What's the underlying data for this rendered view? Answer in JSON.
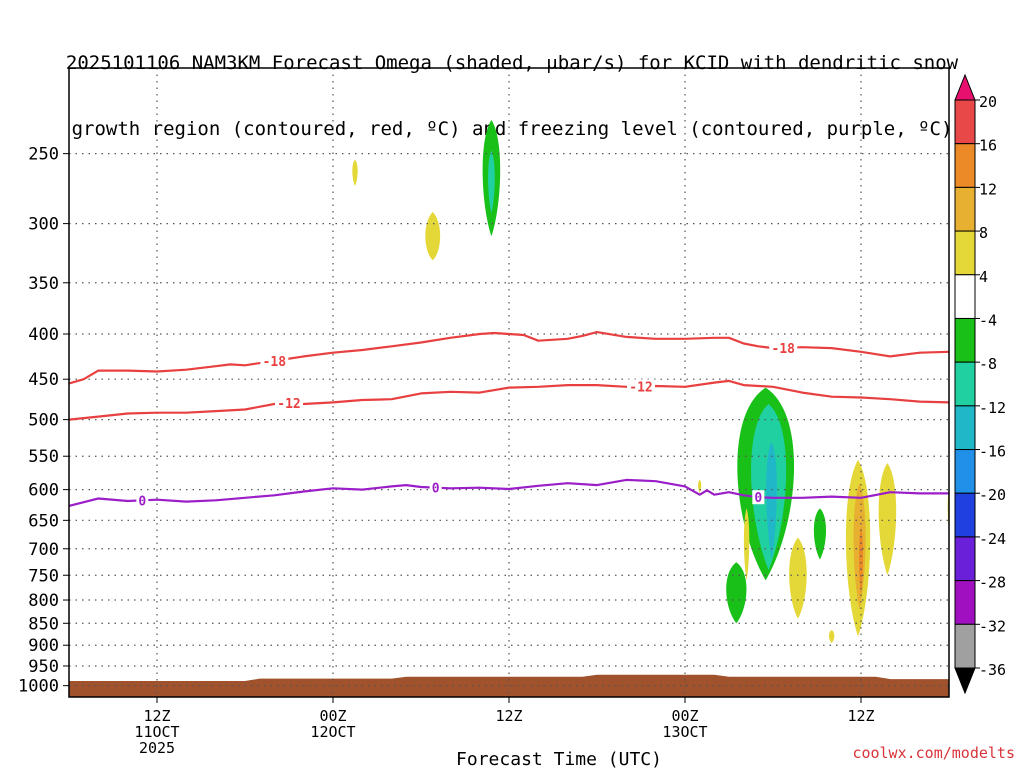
{
  "header": {
    "title_line1": "2025101106 NAM3KM Forecast Omega (shaded, μbar/s) for KCID with dendritic snow",
    "title_line2": "growth region (contoured, red, ºC) and freezing level (contoured, purple, ºC)"
  },
  "footer": {
    "credit": "coolwx.com/modelts"
  },
  "chart_data": {
    "type": "heatmap",
    "title": "2025101106 NAM3KM Forecast Omega (shaded, μbar/s) for KCID with dendritic snow growth region (contoured, red, ºC) and freezing level (contoured, purple, ºC)",
    "xlabel": "Forecast Time (UTC)",
    "ylabel": "",
    "x_unit": "hours since 2025-10-11 06Z",
    "xlim": [
      0,
      60
    ],
    "ylim": [
      1030,
      200
    ],
    "y_scale": "log-pressure",
    "grid": true,
    "y_ticks": [
      250,
      300,
      350,
      400,
      450,
      500,
      550,
      600,
      650,
      700,
      750,
      800,
      850,
      900,
      950,
      1000
    ],
    "x_ticks": [
      {
        "x": 6,
        "label": [
          "12Z",
          "11OCT",
          "2025"
        ]
      },
      {
        "x": 18,
        "label": [
          "00Z",
          "12OCT"
        ]
      },
      {
        "x": 30,
        "label": [
          "12Z"
        ]
      },
      {
        "x": 42,
        "label": [
          "00Z",
          "13OCT"
        ]
      },
      {
        "x": 54,
        "label": [
          "12Z"
        ]
      }
    ],
    "colorbar": {
      "labels": [
        "20",
        "16",
        "12",
        "8",
        "4",
        "-4",
        "-8",
        "-12",
        "-16",
        "-20",
        "-24",
        "-28",
        "-32",
        "-36"
      ],
      "colors": [
        "#e8106e",
        "#e84848",
        "#ec8a28",
        "#e8b030",
        "#e4d838",
        "#ffffff",
        "#18c018",
        "#20d0a0",
        "#20b8c8",
        "#2090e8",
        "#2040e0",
        "#6a20d8",
        "#a010c0",
        "#a0a0a0",
        "#000000"
      ]
    },
    "contours": [
      {
        "name": "-18",
        "color": "#e84040",
        "x": [
          0,
          1,
          2,
          4,
          6,
          8,
          10,
          11,
          12,
          14,
          16,
          18,
          20,
          22,
          24,
          26,
          28,
          29,
          30,
          31,
          32,
          34,
          35,
          36,
          38,
          40,
          42,
          44,
          45,
          46,
          47,
          48,
          50,
          52,
          54,
          56,
          58,
          60
        ],
        "y": [
          455,
          450,
          440,
          440,
          441,
          439,
          435,
          433,
          434,
          429,
          424,
          420,
          417,
          413,
          409,
          404,
          400,
          399,
          400,
          401,
          407,
          405,
          402,
          398,
          403,
          405,
          405,
          404,
          404,
          410,
          413,
          415,
          414,
          415,
          419,
          424,
          420,
          419
        ],
        "labels": [
          {
            "x": 14,
            "text": "-18"
          },
          {
            "x": 48.7,
            "text": "-18"
          }
        ]
      },
      {
        "name": "-12",
        "color": "#e84040",
        "x": [
          0,
          2,
          4,
          6,
          8,
          10,
          12,
          14,
          15,
          16,
          18,
          20,
          22,
          24,
          26,
          28,
          30,
          32,
          34,
          36,
          38,
          40,
          42,
          44,
          45,
          46,
          48,
          50,
          52,
          54,
          56,
          58,
          60
        ],
        "y": [
          500,
          496,
          492,
          491,
          491,
          489,
          487,
          480,
          479,
          480,
          478,
          475,
          474,
          467,
          465,
          466,
          460,
          459,
          457,
          457,
          459,
          458,
          459,
          454,
          452,
          457,
          459,
          466,
          471,
          472,
          474,
          477,
          478
        ],
        "labels": [
          {
            "x": 15,
            "text": "-12"
          },
          {
            "x": 39,
            "text": "-12"
          }
        ]
      },
      {
        "name": "0",
        "color": "#9b1ec8",
        "x": [
          0,
          1,
          2,
          4,
          6,
          8,
          10,
          12,
          14,
          16,
          18,
          20,
          22,
          23,
          24,
          26,
          28,
          30,
          32,
          34,
          36,
          38,
          40,
          42,
          43,
          43.5,
          44,
          45,
          46,
          47,
          48,
          50,
          52,
          54,
          56,
          58,
          60
        ],
        "y": [
          626,
          620,
          614,
          618,
          616,
          619,
          617,
          613,
          609,
          603,
          598,
          600,
          595,
          593,
          596,
          598,
          597,
          599,
          594,
          590,
          593,
          585,
          587,
          595,
          608,
          601,
          608,
          604,
          609,
          612,
          613,
          613,
          611,
          613,
          604,
          606,
          606
        ],
        "labels": [
          {
            "x": 5,
            "text": "0"
          },
          {
            "x": 25,
            "text": "0"
          },
          {
            "x": 47,
            "text": "0"
          }
        ]
      }
    ],
    "terrain": {
      "color": "#a0522d",
      "top": [
        {
          "x": 0,
          "p": 988
        },
        {
          "x": 12,
          "p": 988
        },
        {
          "x": 13,
          "p": 982
        },
        {
          "x": 22,
          "p": 982
        },
        {
          "x": 23,
          "p": 977
        },
        {
          "x": 35,
          "p": 977
        },
        {
          "x": 36,
          "p": 972
        },
        {
          "x": 44,
          "p": 972
        },
        {
          "x": 45,
          "p": 977
        },
        {
          "x": 55,
          "p": 977
        },
        {
          "x": 56,
          "p": 983
        },
        {
          "x": 60,
          "p": 983
        }
      ]
    },
    "shaded_regions": [
      {
        "class": "4 to 8",
        "color": "#e4d838",
        "center": {
          "x": 19.5,
          "p": 262
        },
        "half_width_h": 0.2,
        "p_range": [
          254,
          272
        ]
      },
      {
        "class": "4 to 8",
        "color": "#e4d838",
        "center": {
          "x": 24.8,
          "p": 317
        },
        "half_width_h": 0.55,
        "p_range": [
          291,
          330
        ]
      },
      {
        "class": "-4 to -8",
        "color": "#18c018",
        "center": {
          "x": 28.8,
          "p": 264
        },
        "half_width_h": 0.65,
        "p_range": [
          229,
          310
        ]
      },
      {
        "class": "-8 to -12",
        "color": "#20d0a0",
        "center": {
          "x": 28.8,
          "p": 268
        },
        "half_width_h": 0.25,
        "p_range": [
          248,
          292
        ]
      },
      {
        "class": "-4 to -8",
        "color": "#18c018",
        "center": {
          "x": 47.5,
          "p": 560
        },
        "half_width_h": 2.1,
        "p_range": [
          460,
          760
        ]
      },
      {
        "class": "-8 to -12",
        "color": "#20d0a0",
        "center": {
          "x": 47.7,
          "p": 565
        },
        "half_width_h": 1.3,
        "p_range": [
          480,
          740
        ]
      },
      {
        "class": "-12 to -16",
        "color": "#20b8c8",
        "center": {
          "x": 47.9,
          "p": 590
        },
        "half_width_h": 0.4,
        "p_range": [
          530,
          720
        ]
      },
      {
        "class": "-4 to -8",
        "color": "#18c018",
        "center": {
          "x": 45.5,
          "p": 785
        },
        "half_width_h": 0.75,
        "p_range": [
          725,
          850
        ]
      },
      {
        "class": "-4 to -8",
        "color": "#18c018",
        "center": {
          "x": 51.2,
          "p": 670
        },
        "half_width_h": 0.45,
        "p_range": [
          630,
          720
        ]
      },
      {
        "class": "4 to 8",
        "color": "#e4d838",
        "center": {
          "x": 49.7,
          "p": 760
        },
        "half_width_h": 0.65,
        "p_range": [
          680,
          840
        ]
      },
      {
        "class": "4 to 8",
        "color": "#e4d838",
        "center": {
          "x": 46.2,
          "p": 690
        },
        "half_width_h": 0.2,
        "p_range": [
          630,
          760
        ]
      },
      {
        "class": "4 to 8",
        "color": "#e4d838",
        "center": {
          "x": 52.0,
          "p": 880
        },
        "half_width_h": 0.2,
        "p_range": [
          865,
          895
        ]
      },
      {
        "class": "4 to 8",
        "color": "#e4d838",
        "center": {
          "x": 43.0,
          "p": 593
        },
        "half_width_h": 0.12,
        "p_range": [
          585,
          605
        ]
      },
      {
        "class": "4 to 8",
        "color": "#e4d838",
        "center": {
          "x": 53.8,
          "p": 700
        },
        "half_width_h": 0.9,
        "p_range": [
          555,
          880
        ]
      },
      {
        "class": "8 to 12",
        "color": "#e8b030",
        "center": {
          "x": 53.9,
          "p": 690
        },
        "half_width_h": 0.45,
        "p_range": [
          590,
          820
        ]
      },
      {
        "class": "12 to 16",
        "color": "#ec8a28",
        "center": {
          "x": 54.0,
          "p": 720
        },
        "half_width_h": 0.15,
        "p_range": [
          660,
          790
        ]
      },
      {
        "class": "4 to 8",
        "color": "#e4d838",
        "center": {
          "x": 55.8,
          "p": 640
        },
        "half_width_h": 0.65,
        "p_range": [
          560,
          750
        ]
      },
      {
        "class": "4 to 8",
        "color": "#e4d838",
        "center": {
          "x": 60.0,
          "p": 630
        },
        "half_width_h": 0.1,
        "p_range": [
          600,
          665
        ]
      }
    ]
  }
}
